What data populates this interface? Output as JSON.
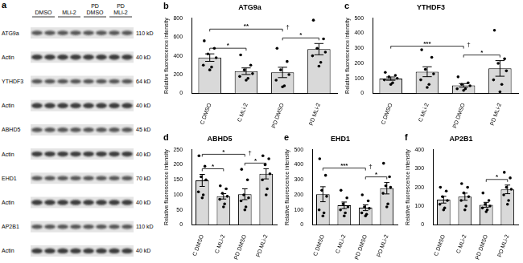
{
  "blot": {
    "panel": "a",
    "conditions": [
      "DMSO",
      "MLi-2",
      "PD DMSO",
      "PD MLi-2"
    ],
    "rows": [
      {
        "label": "ATG9a",
        "size": "110 kD"
      },
      {
        "label": "Actin",
        "size": "40 kD"
      },
      {
        "label": "YTHDF3",
        "size": "64 kD"
      },
      {
        "label": "Actin",
        "size": "40 kD"
      },
      {
        "label": "ABHD5",
        "size": "45 kD"
      },
      {
        "label": "Actin",
        "size": "40 kD"
      },
      {
        "label": "EHD1",
        "size": "70 kD"
      },
      {
        "label": "Actin",
        "size": "40 kD"
      },
      {
        "label": "AP2B1",
        "size": "110 kD"
      },
      {
        "label": "Actin",
        "size": "40 kD"
      }
    ]
  },
  "chart_data": [
    {
      "type": "bar",
      "panel": "b",
      "title": "ATG9a",
      "y_label": "Relative fluorescence intensity",
      "categories": [
        "C DMSO",
        "C MLi-2",
        "PD DMSO",
        "PD MLi-2"
      ],
      "values": [
        381,
        236,
        223,
        471
      ],
      "errors": [
        40,
        35,
        55,
        60
      ],
      "points": [
        [
          560,
          480,
          420,
          380,
          300,
          280,
          250
        ],
        [
          410,
          300,
          250,
          210,
          180,
          160,
          140
        ],
        [
          480,
          340,
          250,
          200,
          140,
          80,
          70
        ],
        [
          780,
          580,
          480,
          440,
          400,
          330,
          290
        ]
      ],
      "color": "#d9d9d9",
      "ylim": [
        0,
        800
      ],
      "yticks": [
        0,
        200,
        400,
        600,
        800
      ],
      "grid": false,
      "significance": [
        {
          "between": [
            "C DMSO",
            "C MLi-2"
          ],
          "label": "*"
        },
        {
          "between": [
            "PD DMSO",
            "PD MLi-2"
          ],
          "label": "*"
        },
        {
          "between": [
            "C DMSO",
            "PD DMSO"
          ],
          "label": "**"
        }
      ],
      "marks": [
        {
          "category": "PD DMSO",
          "label": "†"
        }
      ]
    },
    {
      "type": "bar",
      "panel": "c",
      "title": "YTHDF3",
      "y_label": "Relative fluorescence intensity",
      "categories": [
        "C DMSO",
        "C MLi-2",
        "PD DMSO",
        "PD MLi-2"
      ],
      "values": [
        98,
        144,
        53,
        166
      ],
      "errors": [
        11,
        33,
        12,
        52
      ],
      "points": [
        [
          140,
          120,
          110,
          100,
          90,
          70,
          60
        ],
        [
          290,
          240,
          160,
          130,
          90,
          60,
          40
        ],
        [
          110,
          70,
          60,
          50,
          30,
          30,
          20
        ],
        [
          420,
          230,
          200,
          150,
          90,
          60,
          10
        ]
      ],
      "color": "#d9d9d9",
      "ylim": [
        0,
        500
      ],
      "yticks": [
        0,
        100,
        200,
        300,
        400,
        500
      ],
      "grid": false,
      "significance": [
        {
          "between": [
            "PD DMSO",
            "PD MLi-2"
          ],
          "label": "*"
        },
        {
          "between": [
            "C DMSO",
            "PD DMSO"
          ],
          "label": "***"
        }
      ],
      "marks": [
        {
          "category": "PD DMSO",
          "label": "†"
        }
      ]
    },
    {
      "type": "bar",
      "panel": "d",
      "title": "ABHD5",
      "y_label": "Relative fluorescence intensity",
      "categories": [
        "C DMSO",
        "C MLi-2",
        "PD DMSO",
        "PD MLi-2"
      ],
      "values": [
        148,
        95,
        102,
        170
      ],
      "errors": [
        20,
        9,
        18,
        17
      ],
      "points": [
        [
          230,
          195,
          160,
          150,
          110,
          100,
          90
        ],
        [
          130,
          120,
          105,
          95,
          85,
          70,
          60
        ],
        [
          185,
          150,
          100,
          90,
          80,
          60,
          50
        ],
        [
          230,
          220,
          200,
          170,
          150,
          120,
          100
        ]
      ],
      "color": "#d9d9d9",
      "ylim": [
        0,
        250
      ],
      "yticks": [
        0,
        50,
        100,
        150,
        200,
        250
      ],
      "grid": false,
      "significance": [
        {
          "between": [
            "C DMSO",
            "C MLi-2"
          ],
          "label": "*"
        },
        {
          "between": [
            "PD DMSO",
            "PD MLi-2"
          ],
          "label": "*"
        },
        {
          "between": [
            "C DMSO",
            "PD DMSO"
          ],
          "label": "*"
        }
      ],
      "marks": [
        {
          "category": "PD DMSO",
          "label": "†"
        }
      ]
    },
    {
      "type": "bar",
      "panel": "e",
      "title": "EHD1",
      "y_label": "Relative fluorescence intensity",
      "categories": [
        "C DMSO",
        "C MLi-2",
        "PD DMSO",
        "PD MLi-2"
      ],
      "values": [
        204,
        130,
        114,
        244
      ],
      "errors": [
        50,
        22,
        19,
        38
      ],
      "points": [
        [
          440,
          330,
          230,
          190,
          100,
          80,
          60
        ],
        [
          230,
          180,
          140,
          120,
          100,
          80,
          60
        ],
        [
          200,
          160,
          120,
          110,
          80,
          70,
          60
        ],
        [
          410,
          320,
          260,
          250,
          210,
          140,
          120
        ]
      ],
      "color": "#d9d9d9",
      "ylim": [
        0,
        500
      ],
      "yticks": [
        0,
        100,
        200,
        300,
        400,
        500
      ],
      "grid": false,
      "significance": [
        {
          "between": [
            "PD DMSO",
            "PD MLi-2"
          ],
          "label": "*"
        },
        {
          "between": [
            "C DMSO",
            "PD DMSO"
          ],
          "label": "***"
        }
      ],
      "marks": [
        {
          "category": "PD DMSO",
          "label": "†"
        }
      ]
    },
    {
      "type": "bar",
      "panel": "f",
      "title": "AP2B1",
      "y_label": "Relative fluorescence intensity",
      "categories": [
        "C DMSO",
        "C MLi-2",
        "PD DMSO",
        "PD MLi-2"
      ],
      "values": [
        134,
        150,
        107,
        189
      ],
      "errors": [
        18,
        19,
        13,
        23
      ],
      "points": [
        [
          200,
          180,
          150,
          130,
          110,
          90,
          80
        ],
        [
          220,
          200,
          170,
          150,
          130,
          100,
          80
        ],
        [
          170,
          130,
          110,
          100,
          90,
          80,
          70
        ],
        [
          280,
          250,
          200,
          190,
          160,
          130,
          110
        ]
      ],
      "color": "#d9d9d9",
      "ylim": [
        0,
        400
      ],
      "yticks": [
        0,
        100,
        200,
        300,
        400
      ],
      "grid": false,
      "significance": [
        {
          "between": [
            "PD DMSO",
            "PD MLi-2"
          ],
          "label": "*"
        }
      ],
      "marks": []
    }
  ]
}
